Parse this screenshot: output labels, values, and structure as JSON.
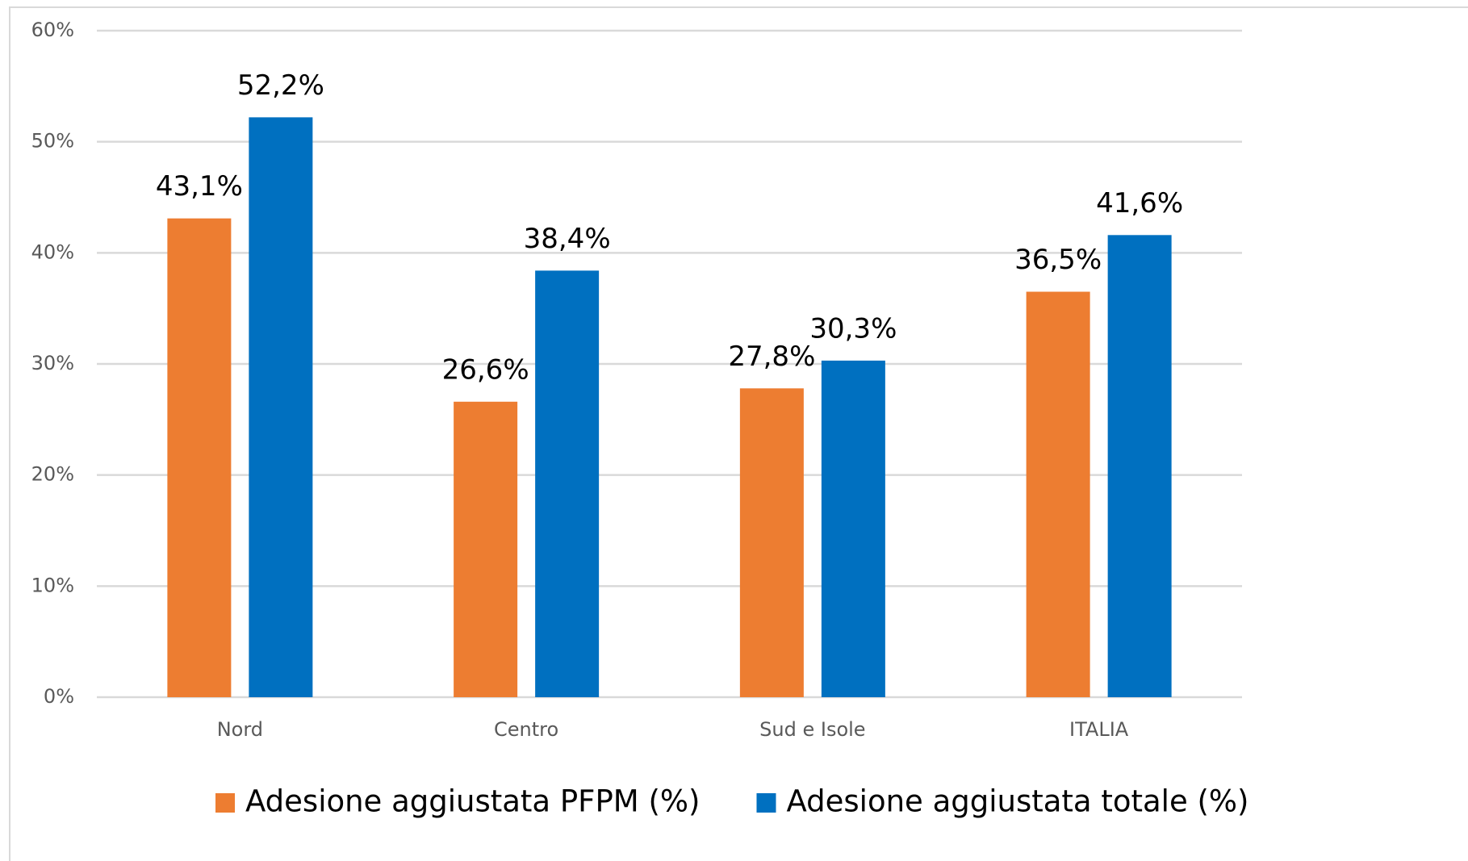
{
  "chart_data": {
    "type": "bar",
    "categories": [
      "Nord",
      "Centro",
      "Sud e Isole",
      "ITALIA"
    ],
    "series": [
      {
        "name": "Adesione aggiustata PFPM (%)",
        "color": "#ed7d31",
        "values": [
          43.1,
          26.6,
          27.8,
          36.5
        ],
        "value_labels": [
          "43,1%",
          "26,6%",
          "27,8%",
          "36,5%"
        ]
      },
      {
        "name": "Adesione aggiustata totale (%)",
        "color": "#0070c0",
        "values": [
          52.2,
          38.4,
          30.3,
          41.6
        ],
        "value_labels": [
          "52,2%",
          "38,4%",
          "30,3%",
          "41,6%"
        ]
      }
    ],
    "ylim": [
      0,
      60
    ],
    "yticks": [
      {
        "value": 0,
        "label": "0%"
      },
      {
        "value": 10,
        "label": "10%"
      },
      {
        "value": 20,
        "label": "20%"
      },
      {
        "value": 30,
        "label": "30%"
      },
      {
        "value": 40,
        "label": "40%"
      },
      {
        "value": 50,
        "label": "50%"
      },
      {
        "value": 60,
        "label": "60%"
      }
    ],
    "grid": true,
    "legend": "bottom"
  }
}
